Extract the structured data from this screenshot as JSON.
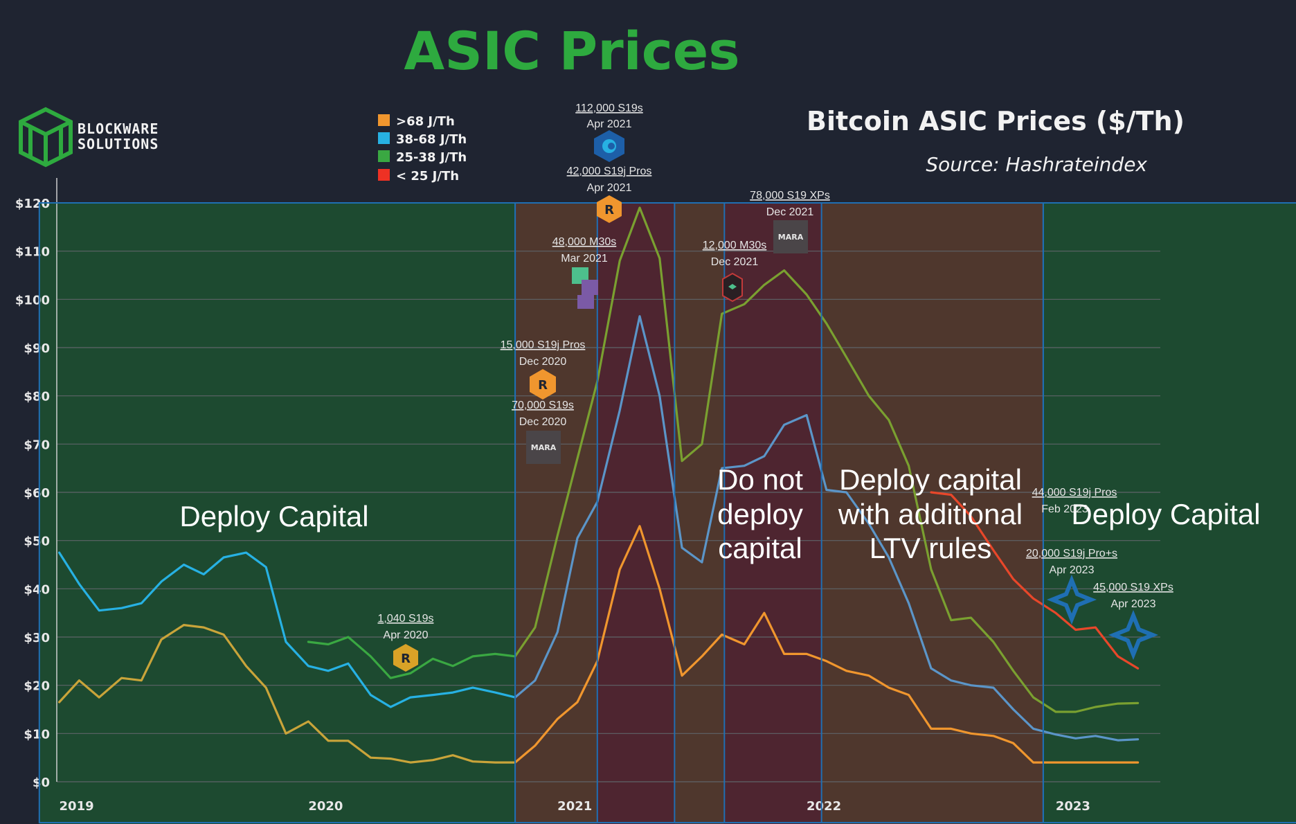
{
  "header": {
    "title": "ASIC Prices",
    "subtitle": "Bitcoin ASIC Prices ($/Th)",
    "source": "Source: Hashrateindex"
  },
  "logo": {
    "line1": "BLOCKWARE",
    "line2": "SOLUTIONS",
    "color": "#2eaa3f"
  },
  "colors": {
    "background": "#1f2431",
    "deploy_green": "#1d4a30",
    "caution_brown": "#4f372d",
    "stop_red": "#4e2530",
    "frame_blue": "#1f6fb3",
    "grid": "#5f6468"
  },
  "legend": [
    {
      "label": ">68 J/Th",
      "color": "#f0962e"
    },
    {
      "label": "38-68 J/Th",
      "color": "#27b1e3"
    },
    {
      "label": "25-38 J/Th",
      "color": "#3aa842"
    },
    {
      "label": "< 25 J/Th",
      "color": "#ee3124"
    }
  ],
  "regions": [
    {
      "x0": 2018.92,
      "x1": 2020.83,
      "kind": "deploy",
      "label": [
        "Deploy Capital"
      ]
    },
    {
      "x0": 2020.83,
      "x1": 2021.16,
      "kind": "caution",
      "label": []
    },
    {
      "x0": 2021.16,
      "x1": 2021.47,
      "kind": "stop",
      "label": []
    },
    {
      "x0": 2021.47,
      "x1": 2021.67,
      "kind": "caution",
      "label": []
    },
    {
      "x0": 2021.67,
      "x1": 2022.06,
      "kind": "stop",
      "label": [
        "Do not",
        "deploy",
        "capital"
      ]
    },
    {
      "x0": 2022.06,
      "x1": 2022.95,
      "kind": "caution",
      "label": [
        "Deploy capital",
        "with additional",
        "LTV rules"
      ]
    },
    {
      "x0": 2022.95,
      "x1": 2023.98,
      "kind": "deploy",
      "label": [
        "Deploy Capital"
      ]
    }
  ],
  "annotations": [
    {
      "line1": "1,040 S19s",
      "line2": "Apr 2020",
      "badge": "riot"
    },
    {
      "line1": "15,000 S19j Pros",
      "line2": "Dec 2020",
      "badge": "riot"
    },
    {
      "line1": "70,000 S19s",
      "line2": "Dec 2020",
      "badge": "mara",
      "badge_text": "MARA"
    },
    {
      "line1": "48,000 M30s",
      "line2": "Mar 2021",
      "badge": "cubes"
    },
    {
      "line1": "112,000 S19s",
      "line2": "Apr 2021",
      "badge": "core"
    },
    {
      "line1": "42,000 S19j Pros",
      "line2": "Apr 2021",
      "badge": "riot"
    },
    {
      "line1": "12,000 M30s",
      "line2": "Dec 2021",
      "badge": "hex"
    },
    {
      "line1": "78,000 S19 XPs",
      "line2": "Dec 2021",
      "badge": "mara",
      "badge_text": "MARA"
    },
    {
      "line1": "44,000 S19j Pros",
      "line2": "Feb 2023",
      "badge": "none"
    },
    {
      "line1": "20,000 S19j Pro+s",
      "line2": "Apr 2023",
      "badge": "star"
    },
    {
      "line1": "45,000 S19 XPs",
      "line2": "Apr 2023",
      "badge": "star"
    }
  ],
  "chart_data": {
    "type": "line",
    "title": "Bitcoin ASIC Prices ($/Th)",
    "xlabel": "",
    "ylabel": "",
    "xlim": [
      2018.99,
      2023.42
    ],
    "ylim": [
      0,
      120
    ],
    "x_ticks": [
      {
        "value": 2019,
        "label": "2019"
      },
      {
        "value": 2020,
        "label": "2020"
      },
      {
        "value": 2021,
        "label": "2021"
      },
      {
        "value": 2022,
        "label": "2022"
      },
      {
        "value": 2023,
        "label": "2023"
      }
    ],
    "y_ticks": [
      {
        "value": 0,
        "label": "$0"
      },
      {
        "value": 10,
        "label": "$10"
      },
      {
        "value": 20,
        "label": "$20"
      },
      {
        "value": 30,
        "label": "$30"
      },
      {
        "value": 40,
        "label": "$40"
      },
      {
        "value": 50,
        "label": "$50"
      },
      {
        "value": 60,
        "label": "$60"
      },
      {
        "value": 70,
        "label": "$70"
      },
      {
        "value": 80,
        "label": "$80"
      },
      {
        "value": 90,
        "label": "$90"
      },
      {
        "value": 100,
        "label": "$100"
      },
      {
        "value": 110,
        "label": "$110"
      },
      {
        "value": 120,
        "label": "$120"
      }
    ],
    "grid": true,
    "legend_position": "top-left",
    "series": [
      {
        "name": ">68 J/Th",
        "color": "#c9a43a",
        "points": [
          [
            2019.0,
            16.5
          ],
          [
            2019.08,
            21
          ],
          [
            2019.16,
            17.5
          ],
          [
            2019.25,
            21.5
          ],
          [
            2019.33,
            21
          ],
          [
            2019.41,
            29.5
          ],
          [
            2019.5,
            32.5
          ],
          [
            2019.58,
            32
          ],
          [
            2019.66,
            30.5
          ],
          [
            2019.75,
            24
          ],
          [
            2019.83,
            19.5
          ],
          [
            2019.91,
            10
          ],
          [
            2020.0,
            12.5
          ],
          [
            2020.08,
            8.5
          ],
          [
            2020.16,
            8.5
          ],
          [
            2020.25,
            5
          ],
          [
            2020.33,
            4.8
          ],
          [
            2020.41,
            4
          ],
          [
            2020.5,
            4.5
          ],
          [
            2020.58,
            5.5
          ],
          [
            2020.66,
            4.2
          ],
          [
            2020.75,
            4
          ],
          [
            2020.83,
            4
          ]
        ]
      },
      {
        "name": ">68 J/Th (2020-2023)",
        "color": "#f0962e",
        "points": [
          [
            2020.83,
            4
          ],
          [
            2020.91,
            7.5
          ],
          [
            2021.0,
            13
          ],
          [
            2021.08,
            16.5
          ],
          [
            2021.16,
            25
          ],
          [
            2021.25,
            44
          ],
          [
            2021.33,
            53
          ],
          [
            2021.41,
            40
          ],
          [
            2021.5,
            22
          ],
          [
            2021.58,
            26
          ],
          [
            2021.66,
            30.5
          ],
          [
            2021.75,
            28.5
          ],
          [
            2021.83,
            35
          ],
          [
            2021.91,
            26.5
          ],
          [
            2022.0,
            26.5
          ],
          [
            2022.08,
            25
          ],
          [
            2022.16,
            23
          ],
          [
            2022.25,
            22
          ],
          [
            2022.33,
            19.5
          ],
          [
            2022.41,
            18
          ],
          [
            2022.5,
            11
          ],
          [
            2022.58,
            11
          ],
          [
            2022.66,
            10
          ],
          [
            2022.75,
            9.5
          ],
          [
            2022.83,
            8
          ],
          [
            2022.91,
            4
          ],
          [
            2023.0,
            4
          ],
          [
            2023.08,
            4
          ],
          [
            2023.16,
            4
          ],
          [
            2023.25,
            4
          ],
          [
            2023.33,
            4
          ]
        ]
      },
      {
        "name": "38-68 J/Th",
        "color": "#27b1e3",
        "points": [
          [
            2019.0,
            47.5
          ],
          [
            2019.08,
            41
          ],
          [
            2019.16,
            35.5
          ],
          [
            2019.25,
            36
          ],
          [
            2019.33,
            37
          ],
          [
            2019.41,
            41.5
          ],
          [
            2019.5,
            45
          ],
          [
            2019.58,
            43
          ],
          [
            2019.66,
            46.5
          ],
          [
            2019.75,
            47.5
          ],
          [
            2019.83,
            44.5
          ],
          [
            2019.91,
            29
          ],
          [
            2020.0,
            24
          ],
          [
            2020.08,
            23
          ],
          [
            2020.16,
            24.5
          ],
          [
            2020.25,
            18
          ],
          [
            2020.33,
            15.5
          ],
          [
            2020.41,
            17.5
          ],
          [
            2020.5,
            18
          ],
          [
            2020.58,
            18.5
          ],
          [
            2020.66,
            19.5
          ],
          [
            2020.75,
            18.5
          ],
          [
            2020.83,
            17.5
          ]
        ]
      },
      {
        "name": "38-68 J/Th (2020-2023)",
        "color": "#5b95c8",
        "points": [
          [
            2020.83,
            17.5
          ],
          [
            2020.91,
            21
          ],
          [
            2021.0,
            31
          ],
          [
            2021.08,
            50.5
          ],
          [
            2021.16,
            58
          ],
          [
            2021.25,
            77
          ],
          [
            2021.33,
            96.5
          ],
          [
            2021.41,
            80
          ],
          [
            2021.5,
            48.5
          ],
          [
            2021.58,
            45.5
          ],
          [
            2021.66,
            65
          ],
          [
            2021.75,
            65.5
          ],
          [
            2021.83,
            67.5
          ],
          [
            2021.91,
            74
          ],
          [
            2022.0,
            76
          ],
          [
            2022.08,
            60.5
          ],
          [
            2022.16,
            60
          ],
          [
            2022.25,
            53.5
          ],
          [
            2022.33,
            46.5
          ],
          [
            2022.41,
            37
          ],
          [
            2022.5,
            23.5
          ],
          [
            2022.58,
            21
          ],
          [
            2022.66,
            20
          ],
          [
            2022.75,
            19.5
          ],
          [
            2022.83,
            15
          ],
          [
            2022.91,
            11
          ],
          [
            2023.0,
            9.8
          ],
          [
            2023.08,
            9
          ],
          [
            2023.16,
            9.5
          ],
          [
            2023.25,
            8.6
          ],
          [
            2023.33,
            8.8
          ]
        ]
      },
      {
        "name": "25-38 J/Th",
        "color": "#3aa842",
        "points": [
          [
            2020.0,
            29
          ],
          [
            2020.08,
            28.5
          ],
          [
            2020.16,
            30
          ],
          [
            2020.25,
            26
          ],
          [
            2020.33,
            21.5
          ],
          [
            2020.41,
            22.5
          ],
          [
            2020.5,
            25.5
          ],
          [
            2020.58,
            24
          ],
          [
            2020.66,
            26
          ],
          [
            2020.75,
            26.5
          ],
          [
            2020.83,
            26
          ]
        ]
      },
      {
        "name": "25-38 J/Th (2020-2023)",
        "color": "#7aa030",
        "points": [
          [
            2020.83,
            26
          ],
          [
            2020.91,
            32
          ],
          [
            2021.0,
            51
          ],
          [
            2021.08,
            67
          ],
          [
            2021.16,
            83
          ],
          [
            2021.25,
            108
          ],
          [
            2021.33,
            119
          ],
          [
            2021.41,
            108.5
          ],
          [
            2021.5,
            66.5
          ],
          [
            2021.58,
            70
          ],
          [
            2021.66,
            97
          ],
          [
            2021.75,
            99
          ],
          [
            2021.83,
            103
          ],
          [
            2021.91,
            106
          ],
          [
            2022.0,
            101
          ],
          [
            2022.08,
            95
          ],
          [
            2022.16,
            88
          ],
          [
            2022.25,
            80
          ],
          [
            2022.33,
            75
          ],
          [
            2022.41,
            65.5
          ],
          [
            2022.5,
            44
          ],
          [
            2022.58,
            33.5
          ],
          [
            2022.66,
            34
          ],
          [
            2022.75,
            29
          ],
          [
            2022.83,
            23
          ],
          [
            2022.91,
            17.5
          ],
          [
            2023.0,
            14.5
          ],
          [
            2023.08,
            14.5
          ],
          [
            2023.16,
            15.5
          ],
          [
            2023.25,
            16.2
          ],
          [
            2023.33,
            16.3
          ]
        ]
      },
      {
        "name": "< 25 J/Th",
        "color": "#e8472a",
        "points": [
          [
            2022.5,
            60
          ],
          [
            2022.58,
            59.5
          ],
          [
            2022.66,
            55
          ],
          [
            2022.75,
            48
          ],
          [
            2022.83,
            42
          ],
          [
            2022.91,
            38
          ],
          [
            2023.0,
            35
          ],
          [
            2023.08,
            31.5
          ],
          [
            2023.16,
            32
          ],
          [
            2023.25,
            26
          ],
          [
            2023.33,
            23.5
          ]
        ]
      }
    ]
  }
}
